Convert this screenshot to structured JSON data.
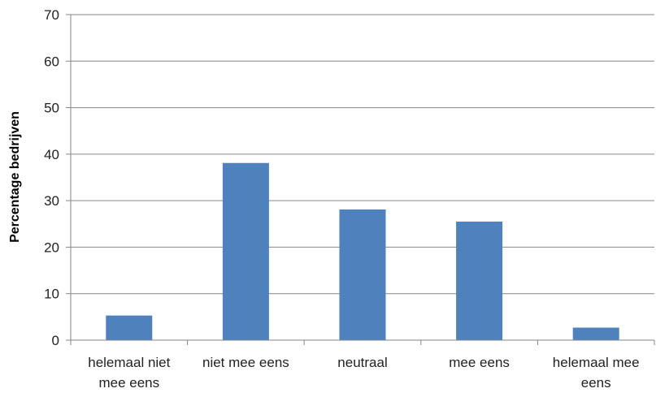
{
  "chart_data": {
    "type": "bar",
    "categories": [
      [
        "helemaal niet",
        "mee eens"
      ],
      [
        "niet mee eens"
      ],
      [
        "neutraal"
      ],
      [
        "mee eens"
      ],
      [
        "helemaal mee",
        "eens"
      ]
    ],
    "values": [
      5.3,
      38.1,
      28.1,
      25.5,
      2.7
    ],
    "ylabel": "Percentage bedrijven",
    "xlabel": "",
    "ylim": [
      0,
      70
    ],
    "yticks": [
      0,
      10,
      20,
      30,
      40,
      50,
      60,
      70
    ],
    "grid": true,
    "legend": "none",
    "colors": {
      "bar": "#4f81bd",
      "grid": "#868686",
      "axis": "#868686"
    }
  }
}
